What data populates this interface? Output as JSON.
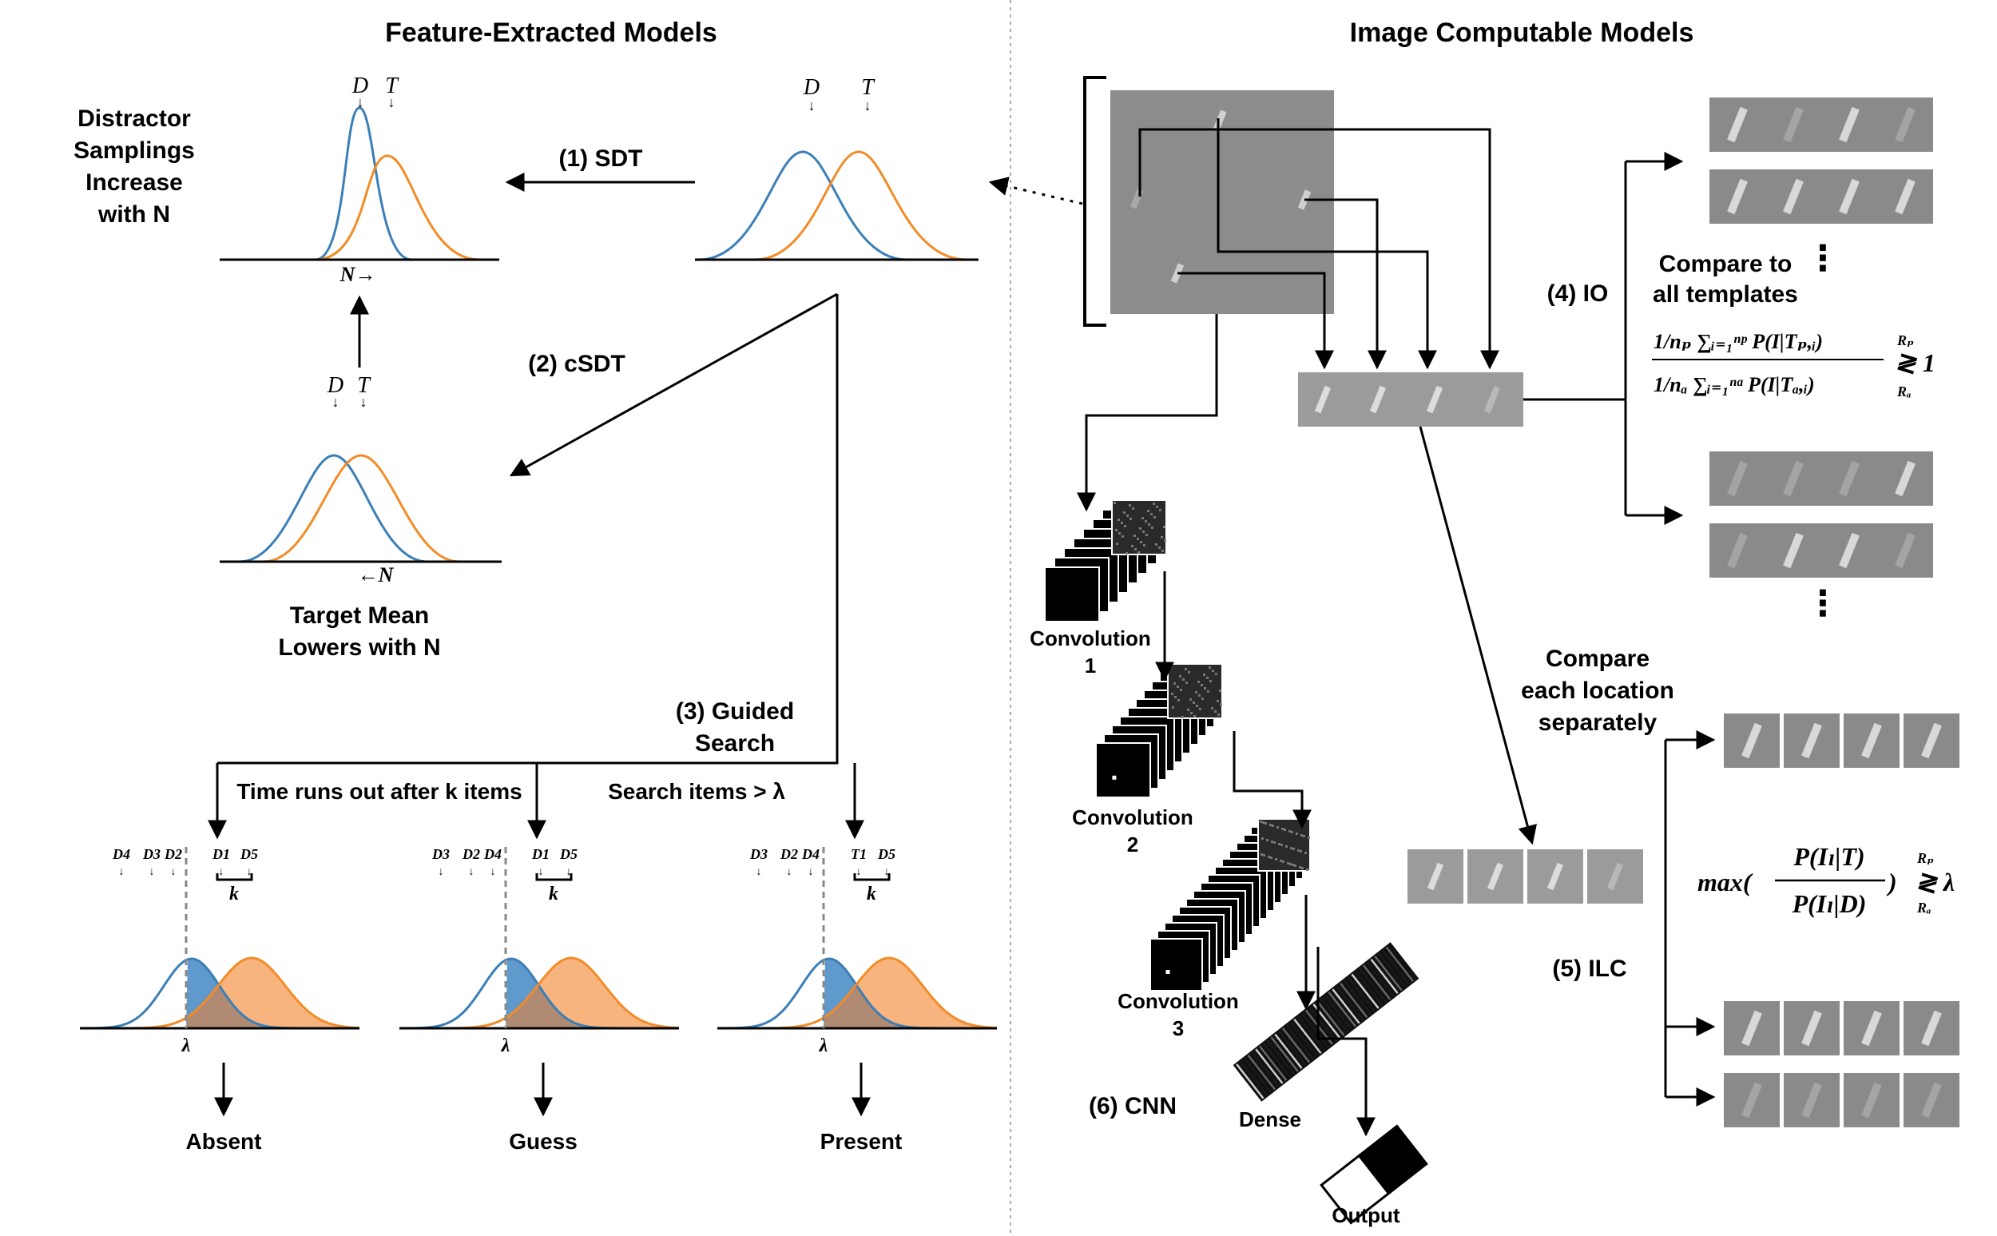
{
  "titles": {
    "left": "Feature-Extracted Models",
    "right": "Image Computable Models"
  },
  "sdt": {
    "label": "(1) SDT",
    "note": [
      "Distractor",
      "Samplings",
      "Increase",
      "with N"
    ],
    "axis_label": "N→"
  },
  "csdt": {
    "label": "(2) cSDT",
    "note": [
      "Target Mean",
      "Lowers with N"
    ],
    "axis_label": "←N"
  },
  "dist_labels": {
    "distractor": "D",
    "target": "T"
  },
  "guided": {
    "label": [
      "(3) Guided",
      "Search"
    ],
    "rule_time": "Time runs out after k items",
    "rule_threshold": "Search items > λ",
    "k": "k",
    "lambda": "λ",
    "panels": [
      {
        "order": [
          "D4",
          "D3",
          "D2",
          "D1",
          "D5"
        ],
        "outcome": "Absent"
      },
      {
        "order": [
          "D3",
          "D2",
          "D4",
          "D1",
          "D5"
        ],
        "outcome": "Guess"
      },
      {
        "order": [
          "D3",
          "D2",
          "D4",
          "T1",
          "D5"
        ],
        "outcome": "Present"
      }
    ]
  },
  "io": {
    "label": "(4) IO",
    "note": [
      "Compare to",
      "all templates"
    ],
    "formula_top": "1/nₚ ∑ᵢ₌₁ⁿᵖ P(I|Tₚ,ᵢ)",
    "formula_bottom": "1/nₐ ∑ᵢ₌₁ⁿᵃ P(I|Tₐ,ᵢ)",
    "decision": "≷ 1",
    "r_top": "Rₚ",
    "r_bottom": "Rₐ",
    "ellipsis": "⋮"
  },
  "ilc": {
    "label": "(5) ILC",
    "note": [
      "Compare",
      "each location",
      "separately"
    ],
    "formula": "max( P(Iₗ|T) / P(Iₗ|D) ) ≷ λ",
    "formula_prefix": "max(",
    "formula_num": "P(Iₗ|T)",
    "formula_den": "P(Iₗ|D)",
    "formula_suffix": ")",
    "decision": "≷ λ",
    "r_top": "Rₚ",
    "r_bottom": "Rₐ"
  },
  "cnn": {
    "label": "(6) CNN",
    "layers": [
      [
        "Convolution",
        "1"
      ],
      [
        "Convolution",
        "2"
      ],
      [
        "Convolution",
        "3"
      ],
      [
        "Dense"
      ],
      [
        "Output"
      ]
    ]
  },
  "colors": {
    "distractor": "#3a7fb8",
    "target": "#f28c28",
    "distractor_fill": "#4f8fc6",
    "target_fill": "#f8b47e",
    "overlap_fill": "#b08a72",
    "stimulus_bg": "#8c8c8c",
    "divider": "#aaaaaa"
  }
}
